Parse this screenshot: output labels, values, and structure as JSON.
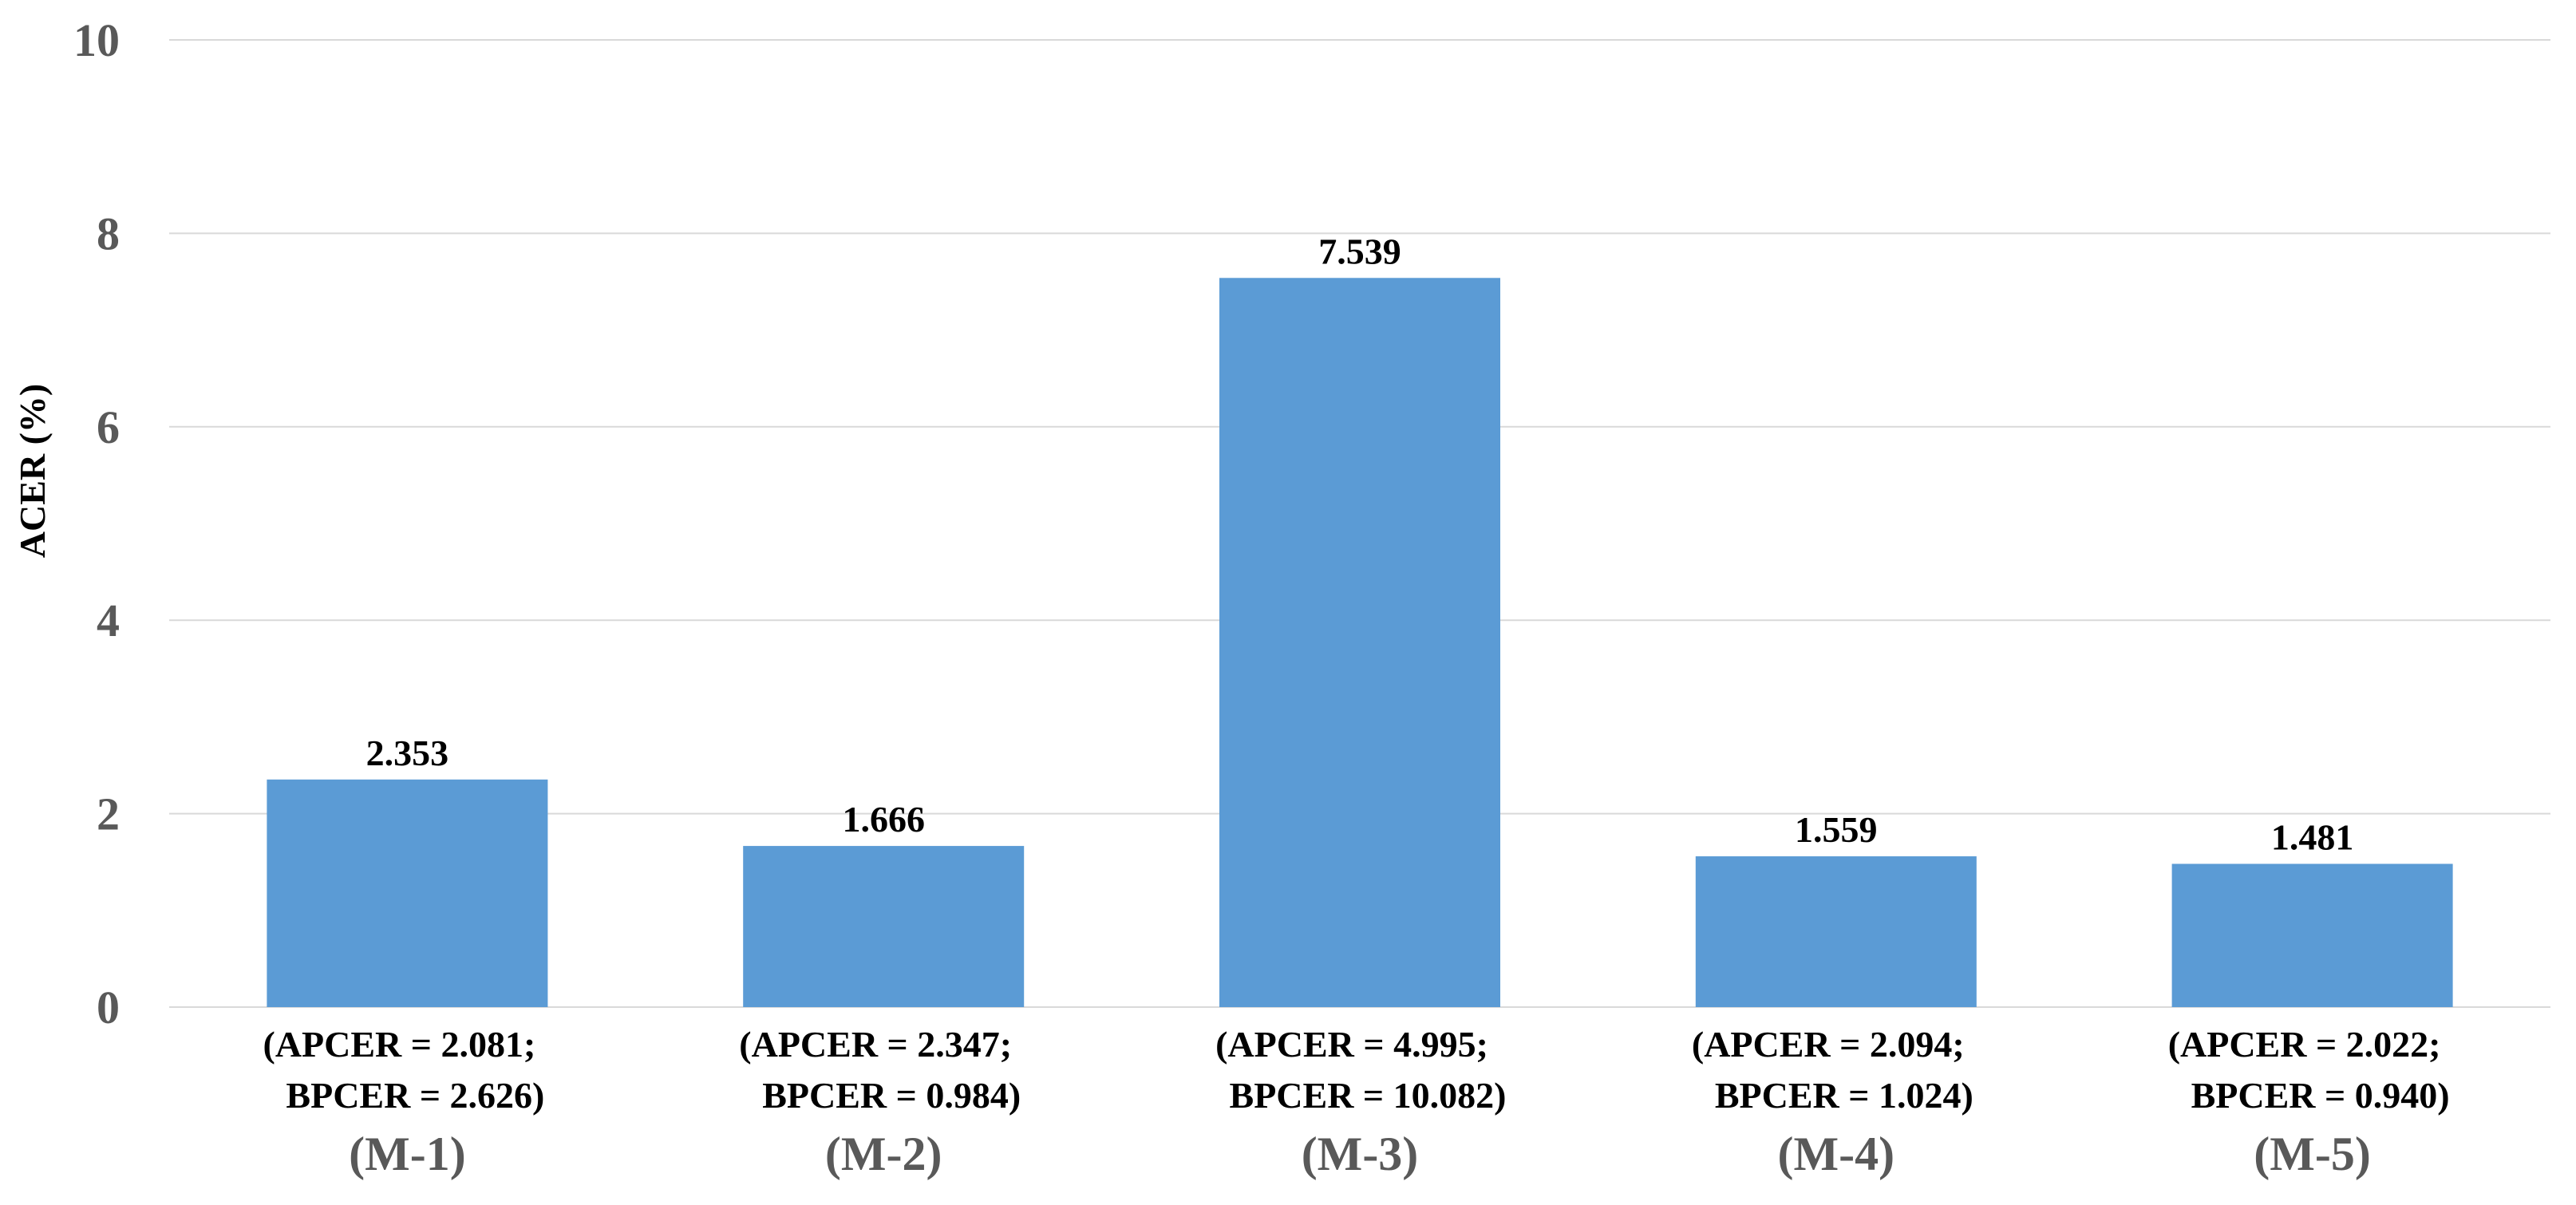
{
  "chart_data": {
    "type": "bar",
    "categories": [
      "(M-1)",
      "(M-2)",
      "(M-3)",
      "(M-4)",
      "(M-5)"
    ],
    "values": [
      2.353,
      1.666,
      7.539,
      1.559,
      1.481
    ],
    "data_labels": [
      "2.353",
      "1.666",
      "7.539",
      "1.559",
      "1.481"
    ],
    "sub_labels": [
      [
        "(APCER = 2.081;",
        "BPCER = 2.626)"
      ],
      [
        "(APCER = 2.347;",
        "BPCER = 0.984)"
      ],
      [
        "(APCER = 4.995;",
        "BPCER = 10.082)"
      ],
      [
        "(APCER = 2.094;",
        "BPCER = 1.024)"
      ],
      [
        "(APCER = 2.022;",
        "BPCER = 0.940)"
      ]
    ],
    "title": "",
    "xlabel": "",
    "ylabel": "ACER (%)",
    "ylim": [
      0,
      10
    ],
    "yticks": [
      0,
      2,
      4,
      6,
      8,
      10
    ],
    "grid": true,
    "legend": "none",
    "colors": {
      "bar": "#5b9bd5",
      "grid": "#d9d9d9",
      "tick_text": "#595959",
      "label_text": "#000000"
    }
  }
}
